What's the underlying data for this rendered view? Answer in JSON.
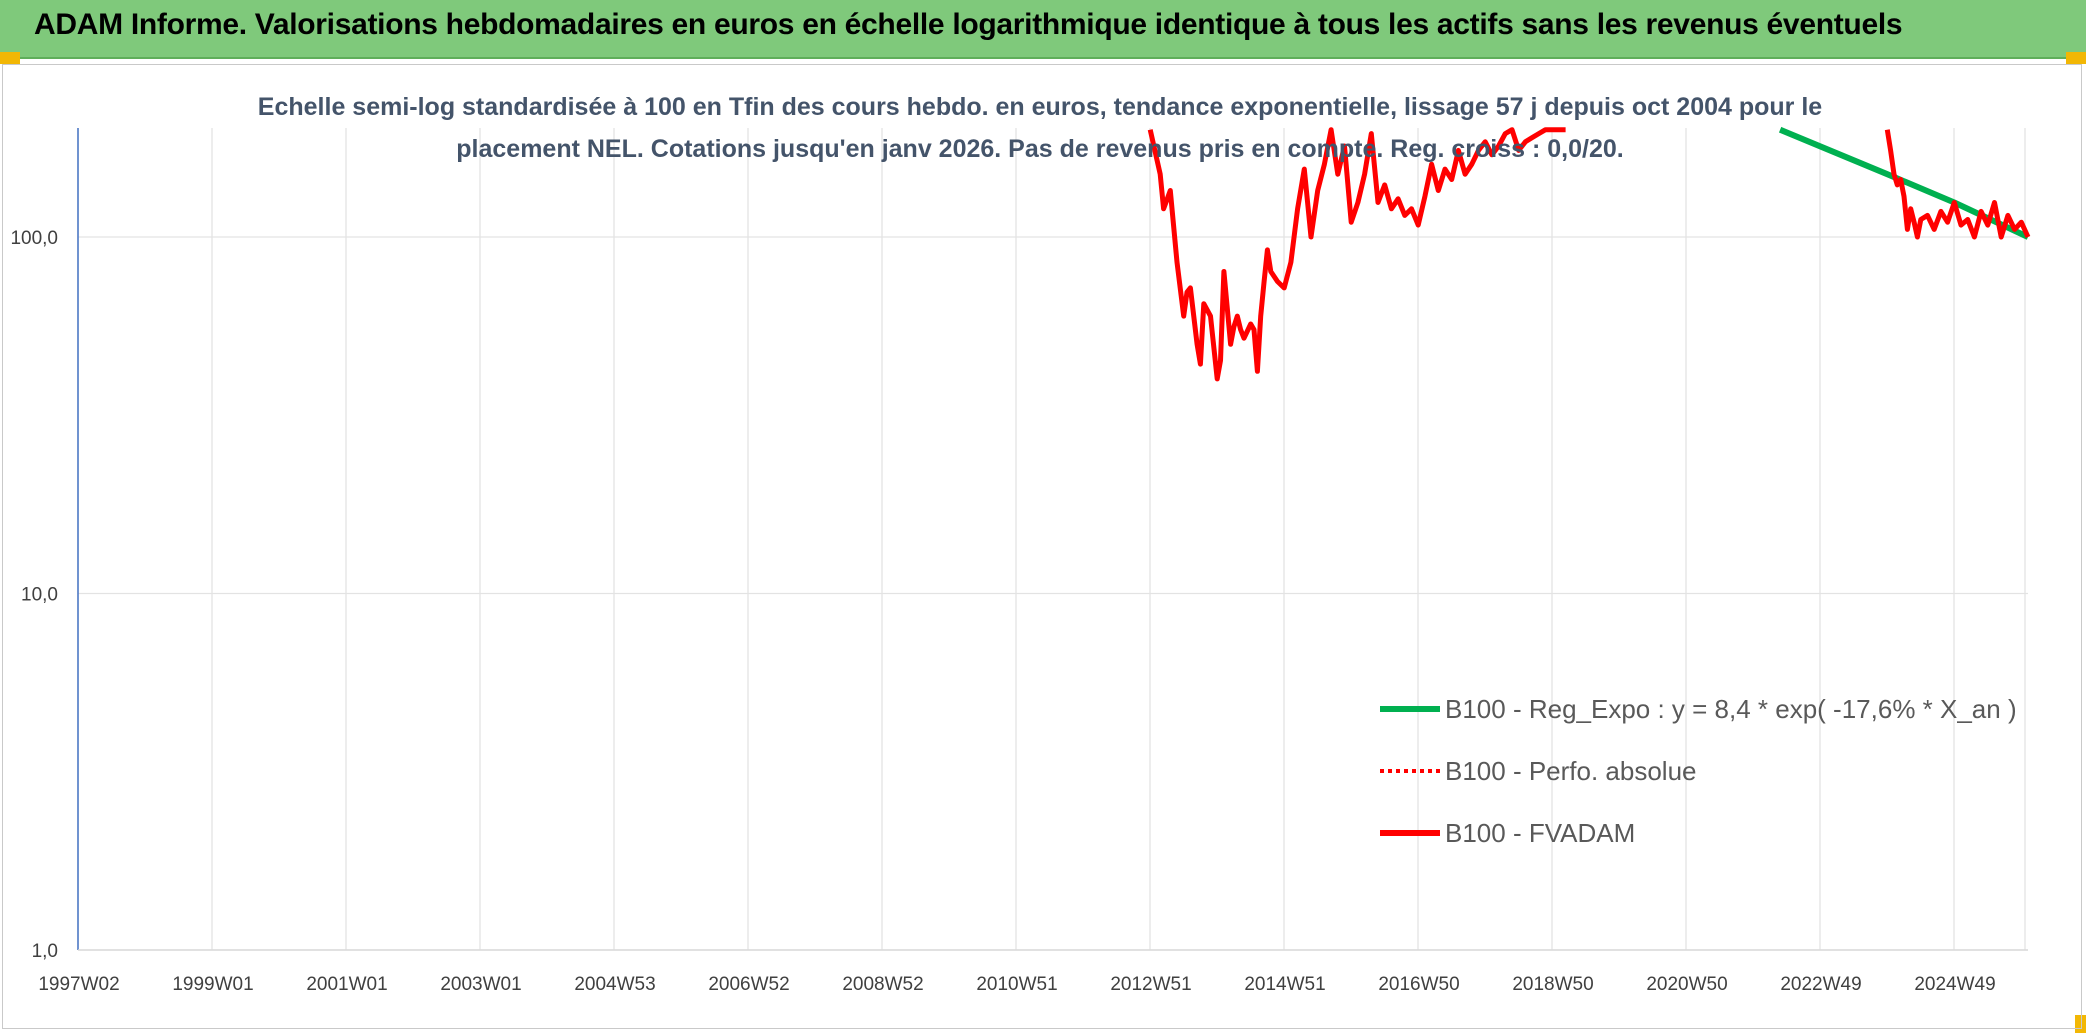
{
  "header": {
    "title": "ADAM Informe. Valorisations hebdomadaires en euros en échelle logarithmique identique à tous les actifs sans les revenus éventuels"
  },
  "colors": {
    "banner": "#7fc97b",
    "reg_expo": "#00b050",
    "perfo": "#ff0000",
    "fvadam": "#ff0000"
  },
  "chart_data": {
    "type": "line",
    "subtitle_lines": [
      "Echelle semi-log standardisée à 100 en Tfin des cours hebdo. en euros, tendance exponentielle, lissage 57 j depuis oct 2004 pour le",
      "placement NEL. Cotations jusqu'en janv 2026. Pas de revenus pris en compte. Reg. croiss : 0,0/20."
    ],
    "y_scale": "log",
    "ylim": [
      1,
      200
    ],
    "y_ticks": [
      "1,0",
      "10,0",
      "100,0"
    ],
    "x_ticks": [
      "1997W02",
      "1999W01",
      "2001W01",
      "2003W01",
      "2004W53",
      "2006W52",
      "2008W52",
      "2010W51",
      "2012W51",
      "2014W51",
      "2016W50",
      "2018W50",
      "2020W50",
      "2022W49",
      "2024W49"
    ],
    "xlim": [
      1997.0,
      2026.1
    ],
    "grid": true,
    "legend_position": "bottom-right",
    "series": [
      {
        "name": "B100 - Reg_Expo : y = 8,4 * exp( -17,6% *  X_an )",
        "style": "solid",
        "x": [
          2022.4,
          2024.0,
          2025.0,
          2026.1
        ],
        "y": [
          200,
          150,
          125,
          100
        ]
      },
      {
        "name": "B100 - Perfo. absolue",
        "style": "dotted",
        "x": [],
        "y": []
      },
      {
        "name": "B100 - FVADAM",
        "style": "solid",
        "x": [
          2013.0,
          2013.15,
          2013.2,
          2013.3,
          2013.4,
          2013.5,
          2013.55,
          2013.6,
          2013.7,
          2013.75,
          2013.8,
          2013.9,
          2014.0,
          2014.05,
          2014.1,
          2014.2,
          2014.25,
          2014.3,
          2014.35,
          2014.4,
          2014.5,
          2014.55,
          2014.6,
          2014.65,
          2014.7,
          2014.75,
          2014.8,
          2014.9,
          2015.0,
          2015.1,
          2015.2,
          2015.3,
          2015.4,
          2015.5,
          2015.6,
          2015.7,
          2015.8,
          2015.9,
          2016.0,
          2016.1,
          2016.2,
          2016.3,
          2016.4,
          2016.5,
          2016.6,
          2016.7,
          2016.8,
          2016.9,
          2017.0,
          2017.1,
          2017.2,
          2017.3,
          2017.4,
          2017.5,
          2017.6,
          2017.7,
          2017.8,
          2017.9,
          2018.0,
          2018.1,
          2018.2,
          2018.3,
          2018.4,
          2018.5,
          2018.6,
          2018.7,
          2018.8,
          2018.9,
          2019.0,
          2019.1,
          2019.2,
          null,
          2024.0,
          2024.05,
          2024.1,
          2024.15,
          2024.2,
          2024.25,
          2024.3,
          2024.35,
          2024.4,
          2024.45,
          2024.5,
          2024.6,
          2024.7,
          2024.8,
          2024.9,
          2025.0,
          2025.1,
          2025.2,
          2025.3,
          2025.4,
          2025.5,
          2025.6,
          2025.7,
          2025.8,
          2025.9,
          2026.0,
          2026.1
        ],
        "y": [
          200,
          150,
          120,
          135,
          85,
          60,
          70,
          72,
          50,
          44,
          65,
          60,
          40,
          45,
          80,
          50,
          56,
          60,
          55,
          52,
          57,
          55,
          42,
          60,
          75,
          92,
          80,
          75,
          72,
          85,
          120,
          155,
          100,
          135,
          160,
          200,
          150,
          180,
          110,
          125,
          150,
          195,
          125,
          140,
          120,
          128,
          115,
          120,
          108,
          130,
          160,
          135,
          155,
          145,
          175,
          150,
          160,
          175,
          185,
          170,
          180,
          195,
          200,
          175,
          185,
          190,
          195,
          200,
          200,
          200,
          200,
          null,
          200,
          175,
          150,
          140,
          145,
          130,
          105,
          120,
          110,
          100,
          112,
          115,
          105,
          118,
          110,
          125,
          108,
          112,
          100,
          118,
          108,
          125,
          100,
          115,
          105,
          110,
          100
        ]
      }
    ]
  }
}
